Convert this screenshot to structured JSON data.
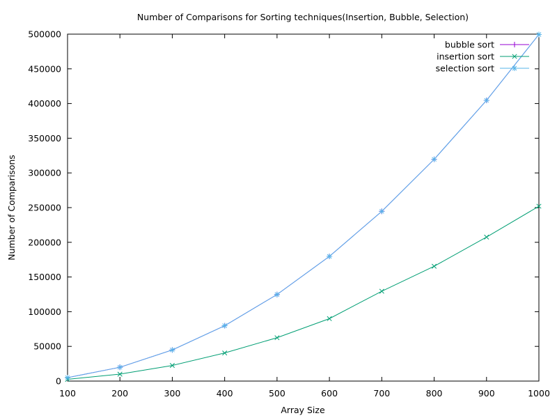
{
  "chart_data": {
    "type": "line",
    "title": "Number of Comparisons for Sorting techniques(Insertion, Bubble, Selection)",
    "xlabel": "Array Size",
    "ylabel": "Number of Comparisons",
    "xlim": [
      100,
      1000
    ],
    "ylim": [
      0,
      500000
    ],
    "x_ticks": [
      100,
      200,
      300,
      400,
      500,
      600,
      700,
      800,
      900,
      1000
    ],
    "y_ticks": [
      0,
      50000,
      100000,
      150000,
      200000,
      250000,
      300000,
      350000,
      400000,
      450000,
      500000
    ],
    "grid": false,
    "legend_position": "top-right",
    "x": [
      100,
      200,
      300,
      400,
      500,
      600,
      700,
      800,
      900,
      1000
    ],
    "series": [
      {
        "name": "bubble sort",
        "marker": "plus",
        "color": "#9400d3",
        "values": [
          4950,
          19900,
          44850,
          79800,
          124750,
          179700,
          244650,
          319600,
          404550,
          499500
        ]
      },
      {
        "name": "insertion sort",
        "marker": "cross",
        "color": "#009e73",
        "values": [
          2500,
          10000,
          22500,
          40500,
          62500,
          90000,
          129500,
          165500,
          207500,
          252000
        ]
      },
      {
        "name": "selection sort",
        "marker": "star",
        "color": "#56b4e9",
        "values": [
          4950,
          19900,
          44850,
          79800,
          124750,
          179700,
          244650,
          319600,
          404550,
          499500
        ]
      }
    ]
  }
}
